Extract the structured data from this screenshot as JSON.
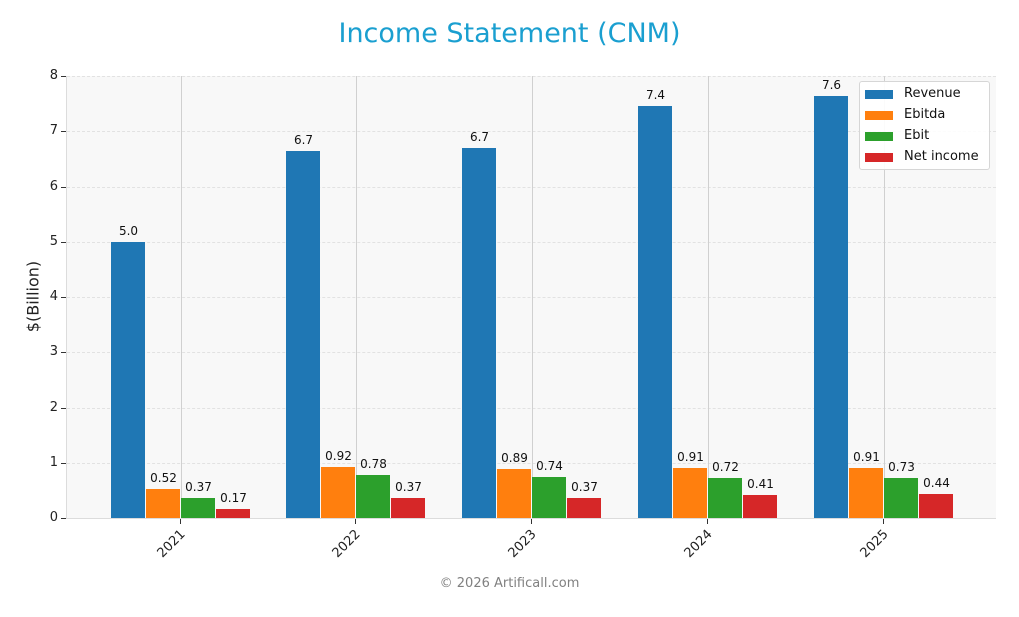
{
  "header": {
    "title": "Income Statement (CNM)"
  },
  "footer": {
    "copyright": "© 2026 Artificall.com"
  },
  "axes": {
    "ylabel": "$(Billion)",
    "yticks": [
      "0",
      "1",
      "2",
      "3",
      "4",
      "5",
      "6",
      "7",
      "8"
    ]
  },
  "legend": {
    "items": [
      {
        "label": "Revenue",
        "color": "#1f77b4"
      },
      {
        "label": "Ebitda",
        "color": "#ff7f0e"
      },
      {
        "label": "Ebit",
        "color": "#2ca02c"
      },
      {
        "label": "Net income",
        "color": "#d62728"
      }
    ]
  },
  "chart_data": {
    "type": "bar",
    "title": "Income Statement (CNM)",
    "xlabel": "",
    "ylabel": "$(Billion)",
    "ylim": [
      0,
      8
    ],
    "grid": true,
    "legend_position": "upper right",
    "categories": [
      "2021",
      "2022",
      "2023",
      "2024",
      "2025"
    ],
    "series": [
      {
        "name": "Revenue",
        "color": "#1f77b4",
        "values": [
          5.0,
          6.65,
          6.7,
          7.45,
          7.63
        ],
        "labels": [
          "5.0",
          "6.7",
          "6.7",
          "7.4",
          "7.6"
        ]
      },
      {
        "name": "Ebitda",
        "color": "#ff7f0e",
        "values": [
          0.52,
          0.92,
          0.89,
          0.91,
          0.91
        ],
        "labels": [
          "0.52",
          "0.92",
          "0.89",
          "0.91",
          "0.91"
        ]
      },
      {
        "name": "Ebit",
        "color": "#2ca02c",
        "values": [
          0.37,
          0.78,
          0.74,
          0.72,
          0.73
        ],
        "labels": [
          "0.37",
          "0.78",
          "0.74",
          "0.72",
          "0.73"
        ]
      },
      {
        "name": "Net income",
        "color": "#d62728",
        "values": [
          0.17,
          0.37,
          0.37,
          0.41,
          0.44
        ],
        "labels": [
          "0.17",
          "0.37",
          "0.37",
          "0.41",
          "0.44"
        ]
      }
    ],
    "footer": "© 2026 Artificall.com"
  }
}
